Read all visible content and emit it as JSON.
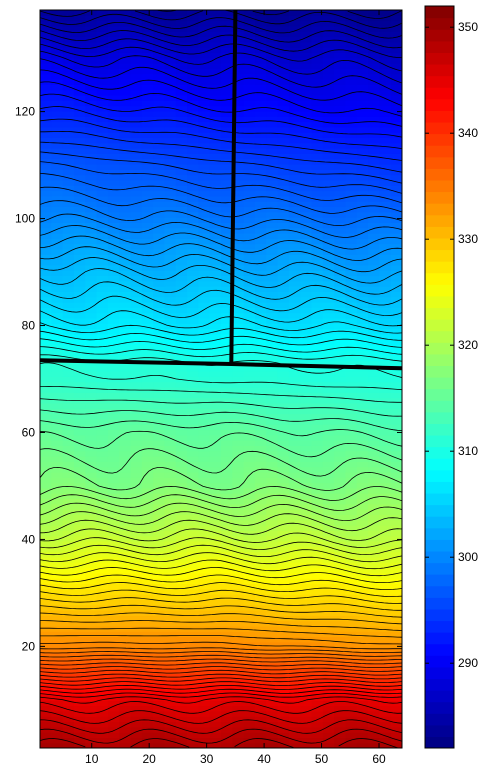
{
  "chart_data": {
    "type": "heatmap",
    "subtype": "filled-contour",
    "title": "",
    "xlabel": "",
    "ylabel": "",
    "xlim": [
      1,
      64
    ],
    "ylim": [
      1,
      139
    ],
    "x_ticks": [
      10,
      20,
      30,
      40,
      50,
      60
    ],
    "y_ticks": [
      20,
      40,
      60,
      80,
      100,
      120
    ],
    "colormap": "jet",
    "colorbar": {
      "placement": "right",
      "range": [
        282,
        352
      ],
      "ticks": [
        290,
        300,
        310,
        320,
        330,
        340,
        350
      ]
    },
    "contour_lines": "black",
    "overlay_lines": [
      {
        "name": "vertical-boundary",
        "points": [
          [
            35.0,
            139
          ],
          [
            34.3,
            73
          ]
        ]
      },
      {
        "name": "horizontal-boundary",
        "points": [
          [
            1,
            73.5
          ],
          [
            34.3,
            72.8
          ],
          [
            64,
            72
          ]
        ]
      }
    ],
    "field_samples": {
      "note_free": true,
      "y": [
        1,
        10,
        20,
        30,
        40,
        50,
        60,
        70,
        73,
        80,
        90,
        100,
        110,
        120,
        130,
        139
      ],
      "value_left": [
        349,
        345,
        334,
        328,
        322,
        317,
        315,
        311.5,
        311,
        307,
        304,
        300,
        297,
        293,
        289,
        284
      ],
      "value_right": [
        349,
        345,
        333,
        327,
        321,
        317,
        314,
        310.5,
        310,
        306,
        302,
        298,
        294,
        290,
        287,
        283
      ],
      "value_mid": [
        349,
        345,
        334,
        328,
        322,
        317,
        315,
        311,
        310.5,
        306.5,
        303,
        299,
        295.5,
        291.5,
        288,
        283.5
      ]
    }
  }
}
